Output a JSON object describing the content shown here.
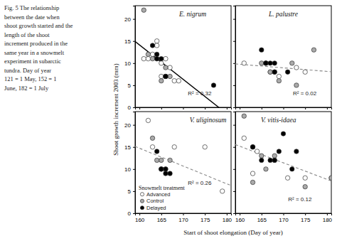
{
  "chart_data": [
    {
      "type": "scatter",
      "title": "E. nigrum",
      "annotations": [
        "R² = 0.32"
      ],
      "xlim": [
        159,
        181
      ],
      "ylim": [
        0,
        23
      ],
      "xticks": [
        160,
        165,
        170,
        175,
        180
      ],
      "yticks": [
        0,
        5,
        10,
        15,
        20
      ],
      "tick_labels": "y",
      "series": [
        {
          "name": "Advanced",
          "color": "white",
          "x": [
            161,
            162,
            163,
            164,
            164,
            165,
            165,
            166,
            166,
            167,
            168,
            169
          ],
          "values": [
            11,
            11,
            12,
            15,
            14,
            10,
            7,
            11,
            7,
            9,
            6,
            6
          ]
        },
        {
          "name": "Control",
          "color": "#aaaaaa",
          "x": [
            161,
            162,
            163,
            164,
            165,
            166,
            167
          ],
          "values": [
            22,
            12,
            11,
            11,
            6,
            9,
            7
          ]
        },
        {
          "name": "Delayed",
          "color": "black",
          "x": [
            163,
            164,
            164,
            165,
            166,
            166,
            177
          ],
          "values": [
            14,
            12,
            11,
            11,
            7,
            7,
            5
          ]
        }
      ],
      "regression": {
        "x": [
          159,
          181
        ],
        "values": [
          14.9118,
          -2.2049
        ],
        "color": "black",
        "line_style": "solid"
      }
    },
    {
      "type": "scatter",
      "title": "L. palustre",
      "annotations": [
        "R² = 0.02"
      ],
      "xlim": [
        159,
        181
      ],
      "ylim": [
        0,
        23
      ],
      "xticks": [
        160,
        165,
        170,
        175,
        180
      ],
      "yticks": [
        0,
        5,
        10,
        15,
        20
      ],
      "tick_labels": false,
      "series": [
        {
          "name": "Advanced",
          "color": "white",
          "x": [
            161,
            167,
            169,
            173,
            175
          ],
          "values": [
            10,
            8,
            7,
            9,
            8
          ]
        },
        {
          "name": "Control",
          "color": "#aaaaaa",
          "x": [
            165,
            166,
            167,
            168,
            169,
            172,
            173,
            177
          ],
          "values": [
            10,
            10,
            8,
            8,
            6,
            10,
            5,
            13
          ]
        },
        {
          "name": "Delayed",
          "color": "black",
          "x": [
            165,
            166,
            166,
            167,
            168,
            168,
            171
          ],
          "values": [
            13,
            10,
            10,
            10,
            10,
            8,
            8
          ]
        }
      ],
      "regression": {
        "x": [
          159,
          181
        ],
        "values": [
          9.8291,
          8.0529
        ],
        "color": "#888888",
        "line_style": "dashed"
      }
    },
    {
      "type": "scatter",
      "title": "V. uliginosum",
      "annotations": [
        "R² = 0.26"
      ],
      "xlim": [
        159,
        181
      ],
      "ylim": [
        0,
        23
      ],
      "xticks": [
        160,
        165,
        170,
        175,
        180
      ],
      "yticks": [
        0,
        5,
        10,
        15,
        20
      ],
      "tick_labels": true,
      "legend": "lower left",
      "legend_title": "Snowmelt treatment",
      "series": [
        {
          "name": "Advanced",
          "color": "white",
          "x": [
            162,
            163,
            168,
            175,
            179
          ],
          "values": [
            21,
            15,
            15,
            15,
            5
          ]
        },
        {
          "name": "Control",
          "color": "#aaaaaa",
          "x": [
            163,
            164,
            165,
            165,
            166,
            167
          ],
          "values": [
            17,
            12,
            12,
            10,
            10,
            12
          ]
        },
        {
          "name": "Delayed",
          "color": "black",
          "x": [
            164,
            165,
            165,
            166,
            166,
            167
          ],
          "values": [
            14,
            10,
            10,
            10,
            9,
            9
          ]
        }
      ],
      "regression": {
        "x": [
          159,
          181
        ],
        "values": [
          15.1221,
          6.2744
        ],
        "color": "#888888",
        "line_style": "dashed"
      }
    },
    {
      "type": "scatter",
      "title": "V. vitis-idaea",
      "annotations": [
        "R² = 0.12"
      ],
      "xlim": [
        159,
        181
      ],
      "ylim": [
        0,
        23
      ],
      "xticks": [
        160,
        165,
        170,
        175,
        180
      ],
      "yticks": [
        0,
        5,
        10,
        15,
        20
      ],
      "tick_labels": "x",
      "series": [
        {
          "name": "Advanced",
          "color": "white",
          "x": [
            161,
            163,
            164,
            168,
            171,
            175,
            181
          ],
          "values": [
            17,
            9,
            14,
            12,
            8,
            8,
            8
          ]
        },
        {
          "name": "Control",
          "color": "#aaaaaa",
          "x": [
            161,
            163,
            165,
            166,
            168,
            175,
            181
          ],
          "values": [
            22,
            7,
            13,
            10,
            13,
            6,
            8
          ]
        },
        {
          "name": "Delayed",
          "color": "black",
          "x": [
            163,
            163,
            165,
            167,
            168,
            169,
            170,
            172,
            173
          ],
          "values": [
            15,
            15,
            12,
            12,
            12,
            14,
            18,
            10,
            14
          ]
        }
      ],
      "regression": {
        "x": [
          159,
          181
        ],
        "values": [
          15.554,
          7.2921
        ],
        "color": "#888888",
        "line_style": "dashed"
      }
    }
  ],
  "caption": "Fig. 5  The relationship\nbetween the date when\nshoot growth started and the\nlength of the shoot\nincrement produced in the\nsame year in a snowmelt\nexperiment in subarctic\ntundra. Day of year\n121 = 1 May, 152 = 1\nJune, 182 = 1 July",
  "xlabel": "Start of shoot elongation (Day of year)",
  "ylabel": "Shoot growth increment 2003 (mm)"
}
